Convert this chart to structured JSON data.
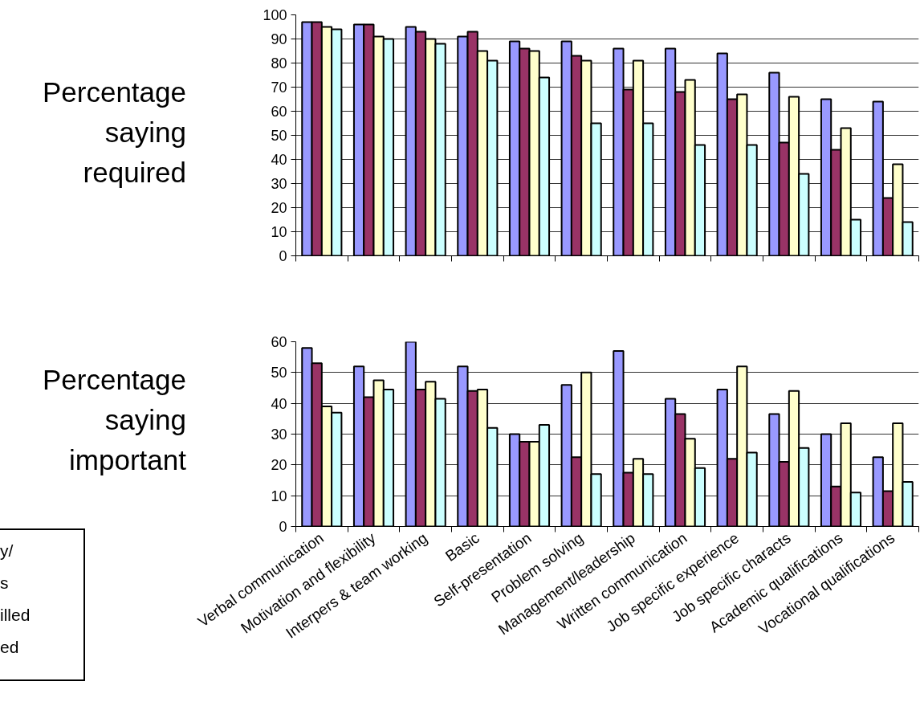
{
  "chart_data": [
    {
      "type": "bar",
      "ylabel": "Percentage saying required",
      "categories": [
        null,
        null,
        null,
        null,
        null,
        null,
        null,
        null,
        null,
        null,
        null,
        null
      ],
      "series": [
        {
          "color": "#9999ff",
          "values": [
            97,
            96,
            95,
            91,
            89,
            89,
            86,
            86,
            84,
            76,
            65,
            64
          ]
        },
        {
          "color": "#993366",
          "values": [
            97,
            96,
            93,
            93,
            86,
            83,
            69,
            68,
            65,
            47,
            44,
            24
          ]
        },
        {
          "color": "#ffffcc",
          "values": [
            95,
            91,
            90,
            85,
            85,
            81,
            81,
            73,
            67,
            66,
            53,
            38
          ]
        },
        {
          "color": "#ccffff",
          "values": [
            94,
            90,
            88,
            81,
            74,
            55,
            55,
            46,
            46,
            34,
            15,
            14
          ]
        }
      ],
      "ylim": [
        0,
        100
      ],
      "yticks": [
        0,
        10,
        20,
        30,
        40,
        50,
        60,
        70,
        80,
        90,
        100
      ],
      "grid": "y",
      "tick_labels": "y"
    },
    {
      "type": "bar",
      "ylabel": "Percentage saying important",
      "categories": [
        "Verbal communication",
        "Motivation and flexibility",
        "Interpers & team working",
        "Basic",
        "Self-presentation",
        "Problem solving",
        "Management/leadership",
        "Written communication",
        "Job specific experience",
        "Job specific characts",
        "Academic qualifications",
        "Vocational qualifications"
      ],
      "series": [
        {
          "color": "#9999ff",
          "values": [
            58,
            52,
            60,
            52,
            30,
            46,
            57,
            41.5,
            44.5,
            36.5,
            30,
            22.5
          ]
        },
        {
          "color": "#993366",
          "values": [
            53,
            42,
            44.5,
            44,
            27.5,
            22.5,
            17.5,
            36.5,
            22,
            21,
            13,
            11.5
          ]
        },
        {
          "color": "#ffffcc",
          "values": [
            39,
            47.5,
            47,
            44.5,
            27.5,
            50,
            22,
            28.5,
            52,
            44,
            33.5,
            33.5
          ]
        },
        {
          "color": "#ccffff",
          "values": [
            37,
            44.5,
            41.5,
            32,
            33,
            17,
            17,
            19,
            24,
            25.5,
            11,
            14.5
          ]
        }
      ],
      "ylim": [
        0,
        60
      ],
      "yticks": [
        0,
        10,
        20,
        30,
        40,
        50,
        60
      ],
      "grid": "y",
      "annotations": [
        "y/",
        "s",
        "illed",
        "ed"
      ]
    }
  ]
}
